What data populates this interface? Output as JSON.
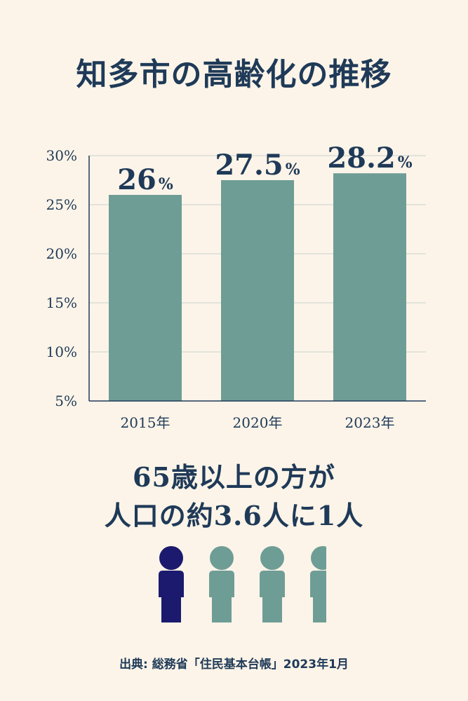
{
  "title": "知多市の高齢化の推移",
  "chart_data": {
    "type": "bar",
    "categories": [
      "2015年",
      "2020年",
      "2023年"
    ],
    "values": [
      26,
      27.5,
      28.2
    ],
    "value_labels": [
      "26",
      "27.5",
      "28.2"
    ],
    "value_unit": "%",
    "yticks": [
      "5%",
      "10%",
      "15%",
      "20%",
      "25%",
      "30%"
    ],
    "ylim": [
      5,
      30
    ],
    "grid": true,
    "bar_color": "#6e9d96"
  },
  "headline": {
    "line1": "65歳以上の方が",
    "line2": "人口の約3.6人に1人"
  },
  "pictogram": {
    "ratio": 3.6,
    "highlight_color": "#1c1a6e",
    "other_color": "#6e9d96"
  },
  "source": "出典: 総務省「住民基本台帳」2023年1月"
}
